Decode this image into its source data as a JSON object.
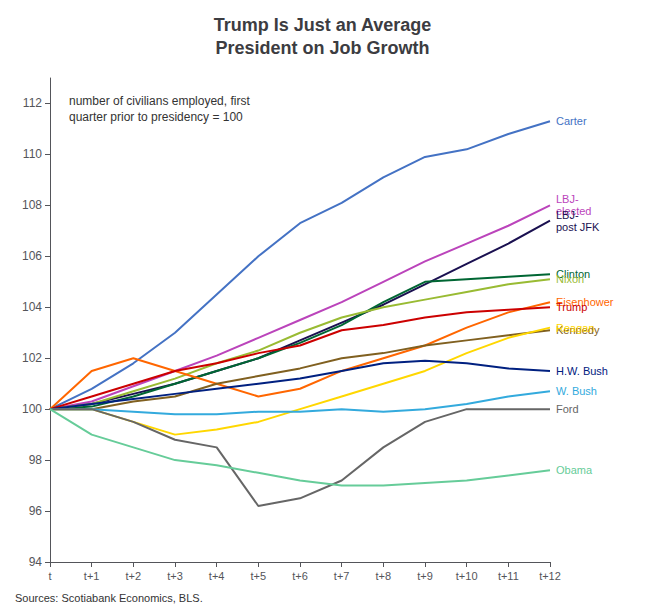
{
  "chart_data": {
    "type": "line",
    "title": "Trump Is Just an Average\nPresident on Job Growth",
    "subtitle": "number of civilians employed, first\nquarter prior to presidency = 100",
    "annotations": [
      "Sources: Scotiabank Economics, BLS."
    ],
    "categories": [
      "t",
      "t+1",
      "t+2",
      "t+3",
      "t+4",
      "t+5",
      "t+6",
      "t+7",
      "t+8",
      "t+9",
      "t+10",
      "t+11",
      "t+12"
    ],
    "ylim": [
      94,
      113
    ],
    "yticks": [
      94,
      96,
      98,
      100,
      102,
      104,
      106,
      108,
      110,
      112
    ],
    "grid": false,
    "series": [
      {
        "name": "Carter",
        "color": "#4472C4",
        "values": [
          100,
          100.8,
          101.8,
          103.0,
          104.5,
          106.0,
          107.3,
          108.1,
          109.1,
          109.9,
          110.2,
          110.8,
          111.3
        ]
      },
      {
        "name": "LBJ-\nelected",
        "color": "#BB44BB",
        "values": [
          100,
          100.3,
          100.9,
          101.5,
          102.1,
          102.8,
          103.5,
          104.2,
          105.0,
          105.8,
          106.5,
          107.2,
          108.0
        ]
      },
      {
        "name": "LBJ-\npost JFK",
        "color": "#1A1050",
        "values": [
          100,
          100.2,
          100.6,
          101.0,
          101.5,
          102.0,
          102.7,
          103.4,
          104.1,
          104.9,
          105.7,
          106.5,
          107.4
        ]
      },
      {
        "name": "Clinton",
        "color": "#006633",
        "values": [
          100,
          100.1,
          100.5,
          101.0,
          101.5,
          102.0,
          102.6,
          103.3,
          104.2,
          105.0,
          105.1,
          105.2,
          105.3
        ]
      },
      {
        "name": "Nixon",
        "color": "#99BB33",
        "values": [
          100,
          100.2,
          100.7,
          101.2,
          101.8,
          102.3,
          103.0,
          103.6,
          104.0,
          104.3,
          104.6,
          104.9,
          105.1
        ]
      },
      {
        "name": "Eisenhower",
        "color": "#FF6600",
        "values": [
          100,
          101.5,
          102.0,
          101.5,
          101.0,
          100.5,
          100.8,
          101.5,
          102.0,
          102.5,
          103.2,
          103.8,
          104.2
        ]
      },
      {
        "name": "Trump",
        "color": "#CC0000",
        "values": [
          100,
          100.5,
          101.0,
          101.5,
          101.8,
          102.2,
          102.5,
          103.1,
          103.3,
          103.6,
          103.8,
          103.9,
          104.0
        ]
      },
      {
        "name": "Kennedy",
        "color": "#806020",
        "values": [
          100,
          100.0,
          100.3,
          100.5,
          101.0,
          101.3,
          101.6,
          102.0,
          102.2,
          102.5,
          102.7,
          102.9,
          103.1
        ]
      },
      {
        "name": "Reagan",
        "color": "#FFD700",
        "values": [
          100,
          100.0,
          99.5,
          99.0,
          99.2,
          99.5,
          100.0,
          100.5,
          101.0,
          101.5,
          102.2,
          102.8,
          103.2
        ]
      },
      {
        "name": "H.W. Bush",
        "color": "#002080",
        "values": [
          100,
          100.2,
          100.4,
          100.6,
          100.8,
          101.0,
          101.2,
          101.5,
          101.8,
          101.9,
          101.8,
          101.6,
          101.5
        ]
      },
      {
        "name": "W. Bush",
        "color": "#33AADD",
        "values": [
          100,
          100.0,
          99.9,
          99.8,
          99.8,
          99.9,
          99.9,
          100.0,
          99.9,
          100.0,
          100.2,
          100.5,
          100.7
        ]
      },
      {
        "name": "Ford",
        "color": "#666666",
        "values": [
          100,
          100.0,
          99.5,
          98.8,
          98.5,
          96.2,
          96.5,
          97.2,
          98.5,
          99.5,
          100.0,
          100.0,
          100.0
        ]
      },
      {
        "name": "Obama",
        "color": "#66CC99",
        "values": [
          100,
          99.0,
          98.5,
          98.0,
          97.8,
          97.5,
          97.2,
          97.0,
          97.0,
          97.1,
          97.2,
          97.4,
          97.6
        ]
      }
    ]
  }
}
